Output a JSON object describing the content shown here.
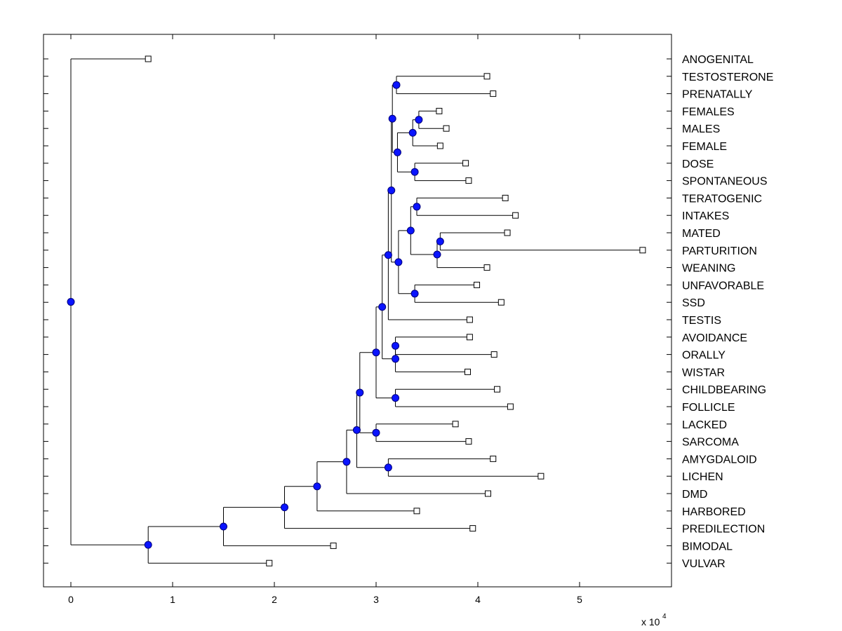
{
  "chart_data": {
    "type": "dendrogram",
    "orientation": "horizontal",
    "x_axis": {
      "ticks": [
        0,
        1,
        2,
        3,
        4,
        5
      ],
      "tick_labels": [
        "0",
        "1",
        "2",
        "3",
        "4",
        "5"
      ],
      "multiplier_label": "x 10",
      "multiplier_exponent": "4",
      "range": [
        -0.27,
        5.9
      ]
    },
    "leaves": [
      {
        "label": "ANOGENITAL",
        "x": 0.76
      },
      {
        "label": "TESTOSTERONE",
        "x": 4.09
      },
      {
        "label": "PRENATALLY",
        "x": 4.15
      },
      {
        "label": "FEMALES",
        "x": 3.62
      },
      {
        "label": "MALES",
        "x": 3.69
      },
      {
        "label": "FEMALE",
        "x": 3.63
      },
      {
        "label": "DOSE",
        "x": 3.88
      },
      {
        "label": "SPONTANEOUS",
        "x": 3.91
      },
      {
        "label": "TERATOGENIC",
        "x": 4.27
      },
      {
        "label": "INTAKES",
        "x": 4.37
      },
      {
        "label": "MATED",
        "x": 4.29
      },
      {
        "label": "PARTURITION",
        "x": 5.62
      },
      {
        "label": "WEANING",
        "x": 4.09
      },
      {
        "label": "UNFAVORABLE",
        "x": 3.99
      },
      {
        "label": "SSD",
        "x": 4.23
      },
      {
        "label": "TESTIS",
        "x": 3.92
      },
      {
        "label": "AVOIDANCE",
        "x": 3.92
      },
      {
        "label": "ORALLY",
        "x": 4.16
      },
      {
        "label": "WISTAR",
        "x": 3.9
      },
      {
        "label": "CHILDBEARING",
        "x": 4.19
      },
      {
        "label": "FOLLICLE",
        "x": 4.32
      },
      {
        "label": "LACKED",
        "x": 3.78
      },
      {
        "label": "SARCOMA",
        "x": 3.91
      },
      {
        "label": "AMYGDALOID",
        "x": 4.15
      },
      {
        "label": "LICHEN",
        "x": 4.62
      },
      {
        "label": "DMD",
        "x": 4.1
      },
      {
        "label": "HARBORED",
        "x": 3.4
      },
      {
        "label": "PREDILECTION",
        "x": 3.95
      },
      {
        "label": "BIMODAL",
        "x": 2.58
      },
      {
        "label": "VULVAR",
        "x": 1.95
      }
    ],
    "merges": [
      {
        "id": "m_testo",
        "x": 3.2,
        "children": [
          "TESTOSTERONE",
          "PRENATALLY"
        ]
      },
      {
        "id": "m_females",
        "x": 3.42,
        "children": [
          "FEMALES",
          "MALES"
        ]
      },
      {
        "id": "m_ffm",
        "x": 3.36,
        "children": [
          "m_females",
          "FEMALE"
        ]
      },
      {
        "id": "m_dose",
        "x": 3.38,
        "children": [
          "DOSE",
          "SPONTANEOUS"
        ]
      },
      {
        "id": "m_fd",
        "x": 3.21,
        "children": [
          "m_ffm",
          "m_dose"
        ]
      },
      {
        "id": "m_top",
        "x": 3.16,
        "children": [
          "m_testo",
          "m_fd"
        ]
      },
      {
        "id": "m_tera",
        "x": 3.4,
        "children": [
          "TERATOGENIC",
          "INTAKES"
        ]
      },
      {
        "id": "m_mated",
        "x": 3.63,
        "children": [
          "MATED",
          "PARTURITION"
        ]
      },
      {
        "id": "m_wean",
        "x": 3.6,
        "children": [
          "m_mated",
          "WEANING"
        ]
      },
      {
        "id": "m_tw",
        "x": 3.34,
        "children": [
          "m_tera",
          "m_wean"
        ]
      },
      {
        "id": "m_unfav",
        "x": 3.38,
        "children": [
          "UNFAVORABLE",
          "SSD"
        ]
      },
      {
        "id": "m_mid",
        "x": 3.22,
        "children": [
          "m_tw",
          "m_unfav"
        ]
      },
      {
        "id": "m_c1",
        "x": 3.15,
        "children": [
          "m_top",
          "m_mid"
        ]
      },
      {
        "id": "m_c2",
        "x": 3.12,
        "children": [
          "m_c1",
          "TESTIS"
        ]
      },
      {
        "id": "m_avoid",
        "x": 3.19,
        "children": [
          "AVOIDANCE",
          "ORALLY"
        ]
      },
      {
        "id": "m_aow",
        "x": 3.19,
        "children": [
          "m_avoid",
          "WISTAR"
        ]
      },
      {
        "id": "m_c3",
        "x": 3.06,
        "children": [
          "m_c2",
          "m_aow"
        ]
      },
      {
        "id": "m_child",
        "x": 3.19,
        "children": [
          "CHILDBEARING",
          "FOLLICLE"
        ]
      },
      {
        "id": "m_c4",
        "x": 3.0,
        "children": [
          "m_c3",
          "m_child"
        ]
      },
      {
        "id": "m_lacked",
        "x": 3.0,
        "children": [
          "LACKED",
          "SARCOMA"
        ]
      },
      {
        "id": "m_c5",
        "x": 2.84,
        "children": [
          "m_c4",
          "m_lacked"
        ]
      },
      {
        "id": "m_amyg",
        "x": 3.12,
        "children": [
          "AMYGDALOID",
          "LICHEN"
        ]
      },
      {
        "id": "m_c6",
        "x": 2.81,
        "children": [
          "m_c5",
          "m_amyg"
        ]
      },
      {
        "id": "m_c7",
        "x": 2.71,
        "children": [
          "m_c6",
          "DMD"
        ]
      },
      {
        "id": "m_c8",
        "x": 2.42,
        "children": [
          "m_c7",
          "HARBORED"
        ]
      },
      {
        "id": "m_c9",
        "x": 2.1,
        "children": [
          "m_c8",
          "PREDILECTION"
        ]
      },
      {
        "id": "m_c10",
        "x": 1.5,
        "children": [
          "m_c9",
          "BIMODAL"
        ]
      },
      {
        "id": "m_c11",
        "x": 0.76,
        "children": [
          "m_c10",
          "VULVAR"
        ]
      },
      {
        "id": "m_root",
        "x": 0.0,
        "children": [
          "ANOGENITAL",
          "m_c11"
        ]
      }
    ]
  }
}
